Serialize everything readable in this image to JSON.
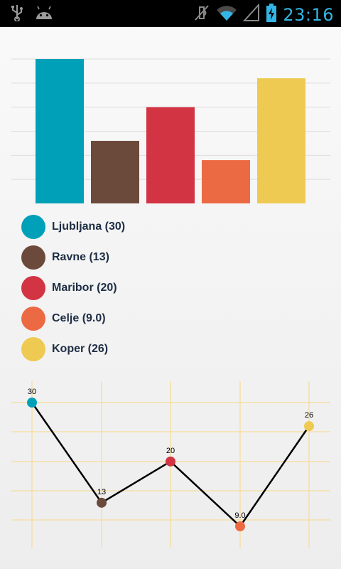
{
  "status_bar": {
    "time": "23:16",
    "icons": [
      "usb-icon",
      "android-icon",
      "mute-icon",
      "wifi-icon",
      "signal-icon",
      "battery-charging-icon"
    ]
  },
  "legend": [
    {
      "label": "Ljubljana (30)",
      "color": "#00a0b8"
    },
    {
      "label": "Ravne (13)",
      "color": "#6b4a3c"
    },
    {
      "label": "Maribor (20)",
      "color": "#d23443"
    },
    {
      "label": "Celje (9.0)",
      "color": "#ec6a43"
    },
    {
      "label": "Koper (26)",
      "color": "#eeca52"
    }
  ],
  "chart_data": [
    {
      "type": "bar",
      "categories": [
        "Ljubljana",
        "Ravne",
        "Maribor",
        "Celje",
        "Koper"
      ],
      "values": [
        30,
        13,
        20,
        9.0,
        26
      ],
      "colors": [
        "#00a0b8",
        "#6b4a3c",
        "#d23443",
        "#ec6a43",
        "#eeca52"
      ],
      "ylim": [
        0,
        30
      ],
      "grid": true
    },
    {
      "type": "line",
      "categories": [
        "Ljubljana",
        "Ravne",
        "Maribor",
        "Celje",
        "Koper"
      ],
      "values": [
        30,
        13,
        20,
        9.0,
        26
      ],
      "point_labels": [
        "30",
        "13",
        "20",
        "9.0",
        "26"
      ],
      "colors": [
        "#00a0b8",
        "#6b4a3c",
        "#d23443",
        "#ec6a43",
        "#eeca52"
      ],
      "line_color": "#000000",
      "grid_color": "#f6dfa8",
      "ylim": [
        9,
        30
      ],
      "grid": true
    }
  ]
}
